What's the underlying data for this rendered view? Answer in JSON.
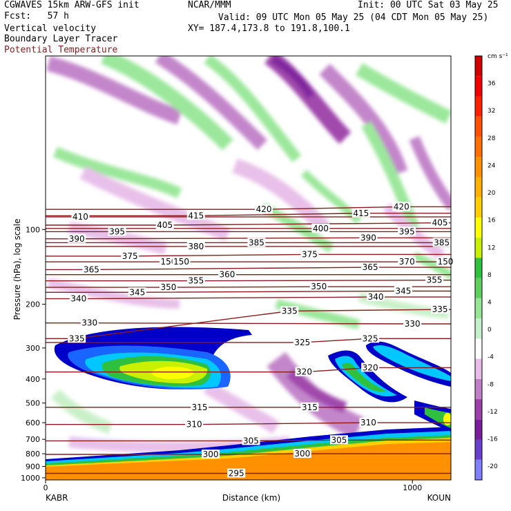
{
  "header": {
    "model": "CGWAVES 15km ARW-GFS init",
    "fcst": "Fcst:   57 h",
    "field1": "Vertical velocity",
    "field2": "Boundary Layer Tracer",
    "field3": "Potential Temperature",
    "org": "NCAR/MMM",
    "valid": "Valid: 09 UTC Mon 05 May 25 (04 CDT Mon 05 May 25)",
    "xy": "XY= 187.4,173.8 to 191.8,100.1",
    "init": "Init: 00 UTC Sat 03 May 25",
    "field3_color": "#8b1a1a"
  },
  "chart_data": {
    "type": "heatmap",
    "title": "",
    "xlabel": "Distance (km)",
    "ylabel": "Pressure (hPa), log scale",
    "x_ticks": [
      "0",
      "1000"
    ],
    "x_tick_values": [
      0,
      1000
    ],
    "xlim": [
      0,
      1105
    ],
    "x_endpoints": [
      "KABR",
      "KOUN"
    ],
    "y_ticks": [
      100,
      200,
      300,
      400,
      500,
      600,
      700,
      800,
      900,
      1000
    ],
    "y_log": true,
    "ylim": [
      1020,
      20
    ],
    "colorbar": {
      "units": "cm s⁻¹",
      "tick_labels": [
        "36",
        "32",
        "28",
        "24",
        "20",
        "16",
        "12",
        "8",
        "4",
        "0",
        "-4",
        "-8",
        "-12",
        "-16",
        "-20"
      ],
      "tick_values": [
        36,
        32,
        28,
        24,
        20,
        16,
        12,
        8,
        4,
        0,
        -4,
        -8,
        -12,
        -16,
        -20
      ],
      "range": [
        -22,
        40
      ],
      "colors": [
        "#8080ff",
        "#6a3fd0",
        "#7a1f9a",
        "#9c3fa8",
        "#c080c8",
        "#e7bde8",
        "#ffffff",
        "#c8f0c8",
        "#96e696",
        "#5fd060",
        "#30c040",
        "#c8f000",
        "#ffff00",
        "#ffd000",
        "#ffb000",
        "#ff9000",
        "#ff7000",
        "#ff5000",
        "#ff2000",
        "#f00000",
        "#d00000"
      ]
    },
    "theta_contours": {
      "name": "Potential Temperature",
      "labeled_levels": [
        295,
        300,
        305,
        310,
        315,
        320,
        325,
        330,
        335,
        340,
        345,
        350,
        355,
        360,
        365,
        370,
        375,
        380,
        385,
        390,
        395,
        400,
        405,
        410,
        415,
        420
      ],
      "labels": [
        {
          "t": "295",
          "x": 520,
          "p": 960
        },
        {
          "t": "300",
          "x": 450,
          "p": 805
        },
        {
          "t": "300",
          "x": 700,
          "p": 800
        },
        {
          "t": "305",
          "x": 560,
          "p": 710
        },
        {
          "t": "305",
          "x": 800,
          "p": 705
        },
        {
          "t": "310",
          "x": 405,
          "p": 610
        },
        {
          "t": "310",
          "x": 880,
          "p": 600
        },
        {
          "t": "315",
          "x": 420,
          "p": 520
        },
        {
          "t": "315",
          "x": 720,
          "p": 520
        },
        {
          "t": "320",
          "x": 705,
          "p": 375
        },
        {
          "t": "320",
          "x": 885,
          "p": 360
        },
        {
          "t": "325",
          "x": 700,
          "p": 285
        },
        {
          "t": "325",
          "x": 885,
          "p": 275
        },
        {
          "t": "330",
          "x": 120,
          "p": 238
        },
        {
          "t": "330",
          "x": 1000,
          "p": 240
        },
        {
          "t": "335",
          "x": 665,
          "p": 213
        },
        {
          "t": "335",
          "x": 1075,
          "p": 210
        },
        {
          "t": "335",
          "x": 85,
          "p": 275
        },
        {
          "t": "340",
          "x": 90,
          "p": 190
        },
        {
          "t": "340",
          "x": 900,
          "p": 187
        },
        {
          "t": "345",
          "x": 250,
          "p": 179
        },
        {
          "t": "345",
          "x": 975,
          "p": 177
        },
        {
          "t": "350",
          "x": 335,
          "p": 171
        },
        {
          "t": "350",
          "x": 745,
          "p": 170
        },
        {
          "t": "355",
          "x": 410,
          "p": 161
        },
        {
          "t": "355",
          "x": 1060,
          "p": 160
        },
        {
          "t": "360",
          "x": 495,
          "p": 152
        },
        {
          "t": "365",
          "x": 125,
          "p": 145
        },
        {
          "t": "365",
          "x": 885,
          "p": 142
        },
        {
          "t": "370",
          "x": 985,
          "p": 135
        },
        {
          "t": "375",
          "x": 230,
          "p": 128
        },
        {
          "t": "375",
          "x": 720,
          "p": 126
        },
        {
          "t": "380",
          "x": 410,
          "p": 117
        },
        {
          "t": "385",
          "x": 575,
          "p": 113
        },
        {
          "t": "385",
          "x": 1080,
          "p": 113
        },
        {
          "t": "390",
          "x": 85,
          "p": 109
        },
        {
          "t": "390",
          "x": 880,
          "p": 108
        },
        {
          "t": "395",
          "x": 195,
          "p": 102
        },
        {
          "t": "395",
          "x": 985,
          "p": 102
        },
        {
          "t": "400",
          "x": 750,
          "p": 99
        },
        {
          "t": "405",
          "x": 325,
          "p": 96
        },
        {
          "t": "405",
          "x": 1075,
          "p": 94
        },
        {
          "t": "410",
          "x": 95,
          "p": 89
        },
        {
          "t": "415",
          "x": 410,
          "p": 88
        },
        {
          "t": "415",
          "x": 860,
          "p": 86
        },
        {
          "t": "420",
          "x": 595,
          "p": 83
        },
        {
          "t": "420",
          "x": 970,
          "p": 81
        },
        {
          "t": "150",
          "x": 335,
          "p": 135
        },
        {
          "t": "150",
          "x": 370,
          "p": 135
        },
        {
          "t": "150",
          "x": 1090,
          "p": 135
        }
      ]
    },
    "tracer": {
      "name": "Boundary Layer Tracer",
      "levels": [
        1,
        2,
        3,
        4,
        5
      ]
    }
  }
}
